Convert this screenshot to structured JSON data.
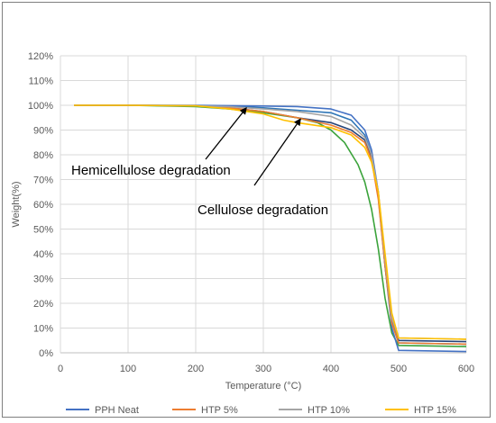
{
  "chart_data": {
    "type": "line",
    "title": "",
    "xlabel": "Temperature (°C)",
    "ylabel": "Weight(%)",
    "xlim": [
      0,
      600
    ],
    "ylim": [
      0,
      120
    ],
    "x_ticks": [
      "0",
      "100",
      "200",
      "300",
      "400",
      "500",
      "600"
    ],
    "y_ticks": [
      "0%",
      "10%",
      "20%",
      "30%",
      "40%",
      "50%",
      "60%",
      "70%",
      "80%",
      "90%",
      "100%",
      "110%",
      "120%"
    ],
    "grid": true,
    "legend_position": "bottom",
    "annotations": [
      {
        "text": "Hemicellulose degradation",
        "arrow_to": [
          275,
          99
        ]
      },
      {
        "text": "Cellulose degradation",
        "arrow_to": [
          355,
          94.5
        ]
      }
    ],
    "series": [
      {
        "name": "PPH Neat",
        "color": "#4472C4",
        "x": [
          20,
          100,
          200,
          300,
          350,
          400,
          430,
          450,
          460,
          470,
          480,
          490,
          500,
          600
        ],
        "y": [
          100,
          100,
          100,
          99.7,
          99.5,
          98.5,
          96,
          90,
          82,
          65,
          35,
          10,
          1,
          0.5
        ]
      },
      {
        "name": "HTP 5%",
        "color": "#ED7D31",
        "x": [
          20,
          100,
          200,
          250,
          300,
          350,
          400,
          430,
          450,
          460,
          470,
          480,
          490,
          500,
          600
        ],
        "y": [
          100,
          100,
          99.8,
          99,
          97.5,
          95,
          92,
          89,
          85,
          78,
          62,
          35,
          12,
          4,
          3.5
        ]
      },
      {
        "name": "HTP 10%",
        "color": "#A5A5A5",
        "x": [
          20,
          100,
          200,
          250,
          300,
          350,
          400,
          430,
          450,
          460,
          470,
          480,
          490,
          500,
          600
        ],
        "y": [
          100,
          100,
          99.8,
          99.4,
          98.5,
          97.5,
          95.5,
          92,
          87,
          80,
          65,
          38,
          14,
          6,
          5.5
        ]
      },
      {
        "name": "HTP 15%",
        "color": "#FFC000",
        "x": [
          20,
          100,
          200,
          250,
          300,
          330,
          350,
          400,
          430,
          450,
          460,
          470,
          480,
          490,
          500,
          600
        ],
        "y": [
          100,
          100,
          99.8,
          98.5,
          96.5,
          94,
          93,
          91,
          88,
          83,
          77,
          65,
          40,
          16,
          6,
          5.5
        ]
      }
    ],
    "extra_lines": [
      {
        "color": "#264478",
        "x": [
          20,
          100,
          200,
          250,
          300,
          350,
          400,
          430,
          450,
          460,
          470,
          480,
          490,
          500,
          600
        ],
        "y": [
          100,
          100,
          99.8,
          99,
          97.5,
          95,
          93,
          90,
          86,
          79,
          64,
          36,
          13,
          5,
          4.5
        ]
      },
      {
        "color": "#2E75B6",
        "x": [
          20,
          100,
          200,
          250,
          300,
          350,
          400,
          430,
          450,
          460,
          470,
          480,
          490,
          500,
          600
        ],
        "y": [
          100,
          100,
          99.9,
          99.6,
          99,
          98,
          97,
          94,
          88,
          80,
          63,
          35,
          12,
          4,
          3.5
        ]
      },
      {
        "color": "#3BA33B",
        "x": [
          20,
          100,
          200,
          250,
          300,
          350,
          380,
          400,
          420,
          440,
          450,
          460,
          470,
          480,
          490,
          500,
          600
        ],
        "y": [
          100,
          100,
          99.5,
          98.5,
          97,
          95,
          93,
          90,
          85,
          76,
          69,
          58,
          42,
          22,
          8,
          3,
          2.5
        ]
      }
    ]
  }
}
